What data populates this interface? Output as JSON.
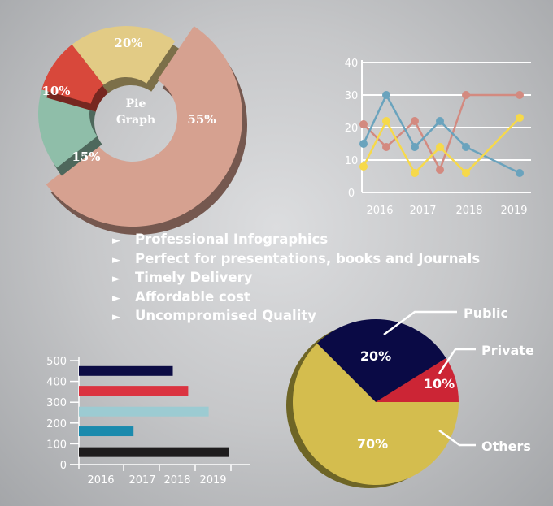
{
  "features": [
    "Professional Infographics",
    "Perfect for presentations, books and Journals",
    "Timely Delivery",
    "Affordable cost",
    "Uncompromised Quality"
  ],
  "bullet_icon": "triangle-right-icon",
  "chart_data": [
    {
      "type": "pie",
      "variant": "donut",
      "center_label": [
        "Pie",
        "Graph"
      ],
      "slices": [
        {
          "label": "20%",
          "value": 20,
          "color": "#e2cb85"
        },
        {
          "label": "55%",
          "value": 55,
          "color": "#d6a190"
        },
        {
          "label": "15%",
          "value": 15,
          "color": "#8fbea9"
        },
        {
          "label": "10%",
          "value": 10,
          "color": "#d8483b"
        }
      ]
    },
    {
      "type": "line",
      "ylim": [
        0,
        40
      ],
      "yticks": [
        "0",
        "10",
        "20",
        "30",
        "40"
      ],
      "xticks": [
        "2016",
        "2017",
        "2018",
        "2019"
      ],
      "grid": true,
      "series": [
        {
          "name": "pink",
          "color": "#d38a80",
          "values": [
            21,
            14,
            22,
            7,
            30,
            30
          ]
        },
        {
          "name": "blue",
          "color": "#6aa3bd",
          "values": [
            15,
            30,
            14,
            22,
            14,
            6
          ]
        },
        {
          "name": "yellow",
          "color": "#f6d94a",
          "values": [
            8,
            22,
            6,
            14,
            6,
            23
          ]
        }
      ]
    },
    {
      "type": "bar",
      "orientation": "horizontal",
      "ylim": [
        0,
        500
      ],
      "yticks": [
        "0",
        "100",
        "200",
        "300",
        "400",
        "500"
      ],
      "xticks": [
        "2016",
        "2017",
        "2018",
        "2019"
      ],
      "bars": [
        {
          "y": 450,
          "length_fraction": 0.55,
          "color": "#0c0c44"
        },
        {
          "y": 355,
          "length_fraction": 0.64,
          "color": "#db3340"
        },
        {
          "y": 255,
          "length_fraction": 0.76,
          "color": "#9ccbd2"
        },
        {
          "y": 160,
          "length_fraction": 0.32,
          "color": "#1a8aad"
        },
        {
          "y": 60,
          "length_fraction": 0.88,
          "color": "#1e1c1d"
        }
      ]
    },
    {
      "type": "pie",
      "variant": "3d",
      "slices": [
        {
          "name": "Public",
          "label": "20%",
          "value": 20,
          "color": "#0a0a45"
        },
        {
          "name": "Private",
          "label": "10%",
          "value": 10,
          "color": "#cc2535"
        },
        {
          "name": "Others",
          "label": "70%",
          "value": 70,
          "color": "#d4bd4e"
        }
      ]
    }
  ]
}
